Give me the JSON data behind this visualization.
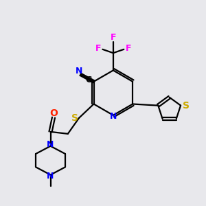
{
  "bg_color": "#e8e8ec",
  "atom_colors": {
    "N": "#0000ff",
    "S": "#ccaa00",
    "O": "#ff2200",
    "F": "#ff00ff"
  },
  "figsize": [
    3.0,
    3.0
  ],
  "dpi": 100
}
